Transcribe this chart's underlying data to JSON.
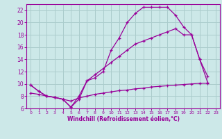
{
  "bg_color": "#cce8e8",
  "line_color": "#990099",
  "grid_color": "#aacccc",
  "xlim": [
    -0.5,
    23.5
  ],
  "ylim": [
    6,
    23
  ],
  "xticks": [
    0,
    1,
    2,
    3,
    4,
    5,
    6,
    7,
    8,
    9,
    10,
    11,
    12,
    13,
    14,
    15,
    16,
    17,
    18,
    19,
    20,
    21,
    22,
    23
  ],
  "yticks": [
    6,
    8,
    10,
    12,
    14,
    16,
    18,
    20,
    22
  ],
  "xlabel": "Windchill (Refroidissement éolien,°C)",
  "curve1_x": [
    0,
    1,
    2,
    3,
    4,
    5,
    6,
    7,
    8,
    9,
    10,
    11,
    12,
    13,
    14,
    15,
    16,
    17,
    18,
    19,
    20,
    21,
    22
  ],
  "curve1_y": [
    9.8,
    8.8,
    8.0,
    7.8,
    7.5,
    6.2,
    7.5,
    10.5,
    11.0,
    12.0,
    15.5,
    17.5,
    20.0,
    21.5,
    22.5,
    22.5,
    22.5,
    22.5,
    21.2,
    19.3,
    18.0,
    14.0,
    11.2
  ],
  "curve2_x": [
    0,
    1,
    2,
    3,
    4,
    5,
    6,
    7,
    8,
    9,
    10,
    11,
    12,
    13,
    14,
    15,
    16,
    17,
    18,
    19,
    20,
    21,
    22
  ],
  "curve2_y": [
    8.5,
    8.3,
    8.0,
    7.8,
    7.5,
    7.2,
    7.7,
    8.0,
    8.3,
    8.5,
    8.7,
    8.9,
    9.0,
    9.2,
    9.3,
    9.5,
    9.6,
    9.7,
    9.8,
    9.9,
    10.0,
    10.1,
    10.1
  ],
  "curve3_x": [
    0,
    1,
    2,
    3,
    4,
    5,
    6,
    7,
    8,
    9,
    10,
    11,
    12,
    13,
    14,
    15,
    16,
    17,
    18,
    19,
    20,
    21,
    22
  ],
  "curve3_y": [
    9.8,
    8.8,
    8.0,
    7.8,
    7.5,
    6.2,
    8.0,
    10.5,
    11.5,
    12.5,
    13.5,
    14.5,
    15.5,
    16.5,
    17.0,
    17.5,
    18.0,
    18.5,
    19.0,
    18.0,
    18.0,
    14.0,
    10.2
  ]
}
